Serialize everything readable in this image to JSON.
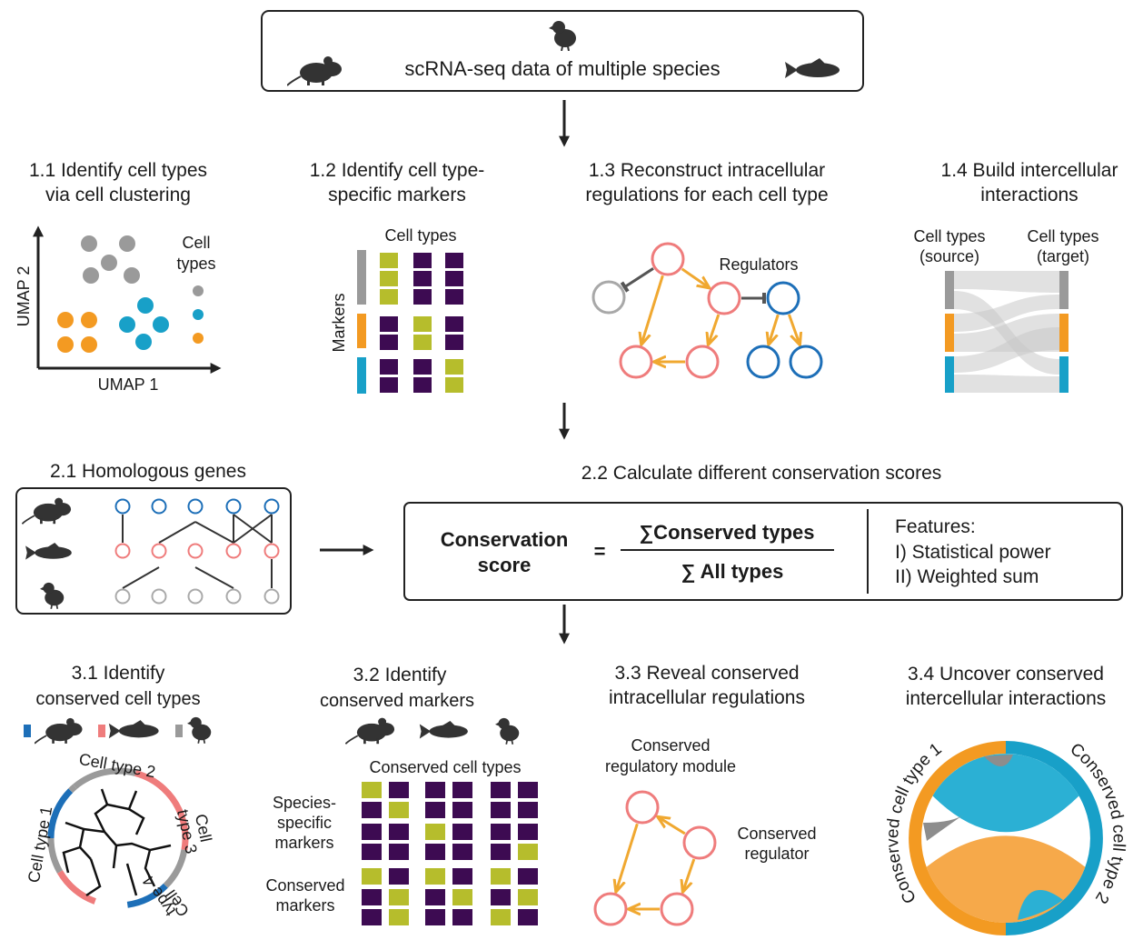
{
  "input": {
    "label": "scRNA-seq data of multiple species"
  },
  "step_1_1": {
    "title": [
      "1.1 Identify cell types",
      "via cell clustering"
    ],
    "y_axis": "UMAP 2",
    "x_axis": "UMAP 1",
    "legend": [
      "Cell",
      "types"
    ]
  },
  "step_1_2": {
    "title": [
      "1.2 Identify cell type-",
      "specific markers"
    ],
    "columns_label": "Cell types",
    "rows_label": "Markers"
  },
  "step_1_3": {
    "title": [
      "1.3 Reconstruct intracellular",
      "regulations for each cell type"
    ],
    "regulators_label": "Regulators"
  },
  "step_1_4": {
    "title": [
      "1.4 Build intercellular",
      "interactions"
    ],
    "source_label": [
      "Cell types",
      "(source)"
    ],
    "target_label": [
      "Cell types",
      "(target)"
    ]
  },
  "step_2_1": {
    "title": "2.1 Homologous genes"
  },
  "step_2_2": {
    "title": "2.2 Calculate different conservation scores",
    "formula": {
      "lhs": [
        "Conservation",
        "score"
      ],
      "equals": "=",
      "numerator": "∑Conserved types",
      "denominator": "∑ All types"
    },
    "features": [
      "Features:",
      "I) Statistical power",
      "II) Weighted sum"
    ]
  },
  "step_3_1": {
    "title": [
      "3.1 Identify",
      "conserved cell types"
    ],
    "clusters": {
      "type_2": "Cell type 2",
      "type_1": "Cell type 1",
      "type_3": [
        "Cell",
        "type 3"
      ],
      "type_4": [
        "Cell",
        "type 4"
      ]
    }
  },
  "step_3_2": {
    "title": [
      "3.2 Identify",
      "conserved markers"
    ],
    "columns_label": "Conserved cell types",
    "species_markers": [
      "Species-",
      "specific",
      "markers"
    ],
    "conserved_markers": [
      "Conserved",
      "markers"
    ]
  },
  "step_3_3": {
    "title": [
      "3.3 Reveal conserved",
      "intracellular regulations"
    ],
    "module_label": [
      "Conserved",
      "regulatory module"
    ],
    "regulator_label": [
      "Conserved",
      "regulator"
    ]
  },
  "step_3_4": {
    "title": [
      "3.4 Uncover conserved",
      "intercellular interactions"
    ],
    "left_label": "Conserved cell type 1",
    "right_label": "Conserved cell type 2"
  }
}
